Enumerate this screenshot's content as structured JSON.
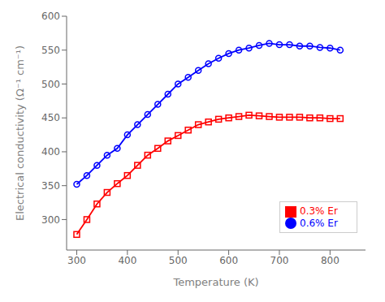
{
  "chart_data": {
    "type": "line",
    "xlabel": "Temperature (K)",
    "ylabel": "Electrical conductivity (Ω⁻¹ cm⁻¹)",
    "x": [
      300,
      320,
      340,
      360,
      380,
      400,
      420,
      440,
      460,
      480,
      500,
      520,
      540,
      560,
      580,
      600,
      620,
      640,
      660,
      680,
      700,
      720,
      740,
      760,
      780,
      800,
      820
    ],
    "series": [
      {
        "name": "0.6% Er",
        "color": "#0000FF",
        "marker": "circle",
        "values": [
          352,
          365,
          380,
          395,
          405,
          425,
          440,
          455,
          470,
          485,
          500,
          510,
          520,
          530,
          538,
          545,
          550,
          553,
          557,
          560,
          558,
          558,
          556,
          556,
          554,
          553,
          550
        ]
      },
      {
        "name": "0.3% Er",
        "color": "#FF0000",
        "marker": "square",
        "values": [
          278,
          300,
          323,
          340,
          353,
          365,
          380,
          395,
          405,
          416,
          424,
          432,
          440,
          444,
          448,
          450,
          452,
          454,
          453,
          452,
          451,
          451,
          451,
          450,
          450,
          449,
          449
        ]
      }
    ],
    "xlim": [
      280,
      870
    ],
    "ylim": [
      255,
      600
    ],
    "xticks": [
      300,
      400,
      500,
      600,
      700,
      800
    ],
    "yticks": [
      300,
      350,
      400,
      450,
      500,
      550,
      600
    ],
    "legend": "lower right",
    "grid": false
  }
}
